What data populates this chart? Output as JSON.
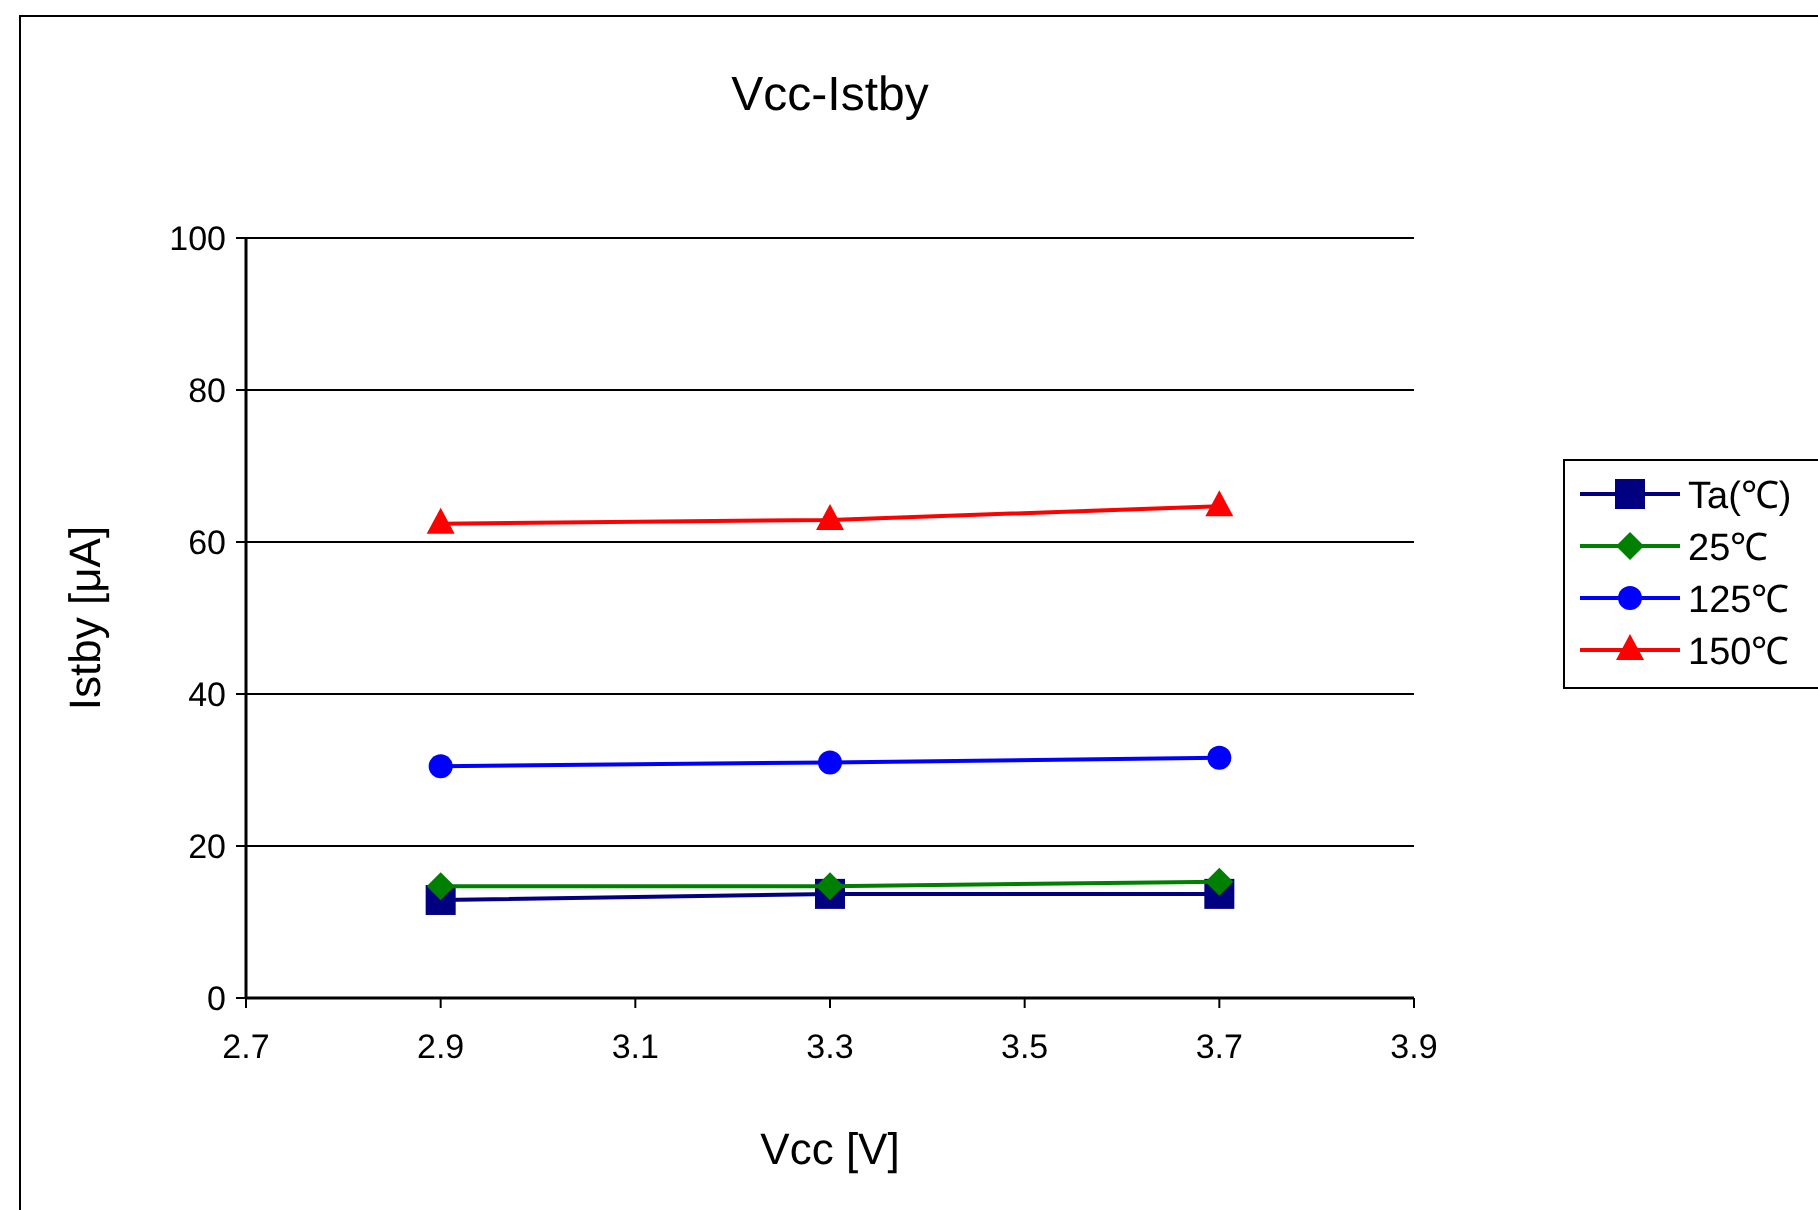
{
  "chart_data": {
    "type": "line",
    "title": "Vcc-Istby",
    "xlabel": "Vcc [V]",
    "ylabel": "Istby [μA]",
    "x": [
      2.9,
      3.3,
      3.7
    ],
    "series": [
      {
        "name": "Ta(℃)",
        "color": "#000080",
        "values": [
          12.9,
          13.7,
          13.7
        ],
        "marker": "square"
      },
      {
        "name": "25℃",
        "color": "#008000",
        "values": [
          14.7,
          14.7,
          15.3
        ],
        "marker": "diamond"
      },
      {
        "name": "125℃",
        "color": "#0000ff",
        "values": [
          30.5,
          31.0,
          31.6
        ],
        "marker": "circle"
      },
      {
        "name": "150℃",
        "color": "#ff0000",
        "values": [
          62.4,
          62.9,
          64.7
        ],
        "marker": "triangle"
      }
    ],
    "xlim": [
      2.7,
      3.9
    ],
    "xticks": [
      2.7,
      2.9,
      3.1,
      3.3,
      3.5,
      3.7,
      3.9
    ],
    "ylim": [
      0,
      100
    ],
    "yticks": [
      0,
      20,
      40,
      60,
      80,
      100
    ],
    "grid": "y",
    "legend": "right",
    "line_style": "solid"
  }
}
